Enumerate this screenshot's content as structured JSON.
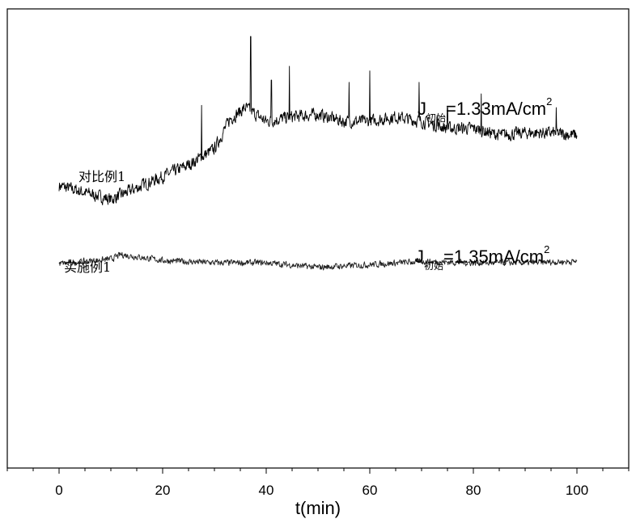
{
  "chart_data": {
    "type": "line",
    "title": "",
    "xlabel": "t(min)",
    "ylabel": "",
    "xlim": [
      -10,
      110
    ],
    "ylim": [
      0,
      1
    ],
    "x_ticks": [
      0,
      20,
      40,
      60,
      80,
      100
    ],
    "x_tick_labels": [
      "0",
      "20",
      "40",
      "60",
      "80",
      "100"
    ],
    "grid": false,
    "legend": "none",
    "series": [
      {
        "name": "对比例1",
        "color": "#000000",
        "baseline_x": [
          0,
          5,
          10,
          15,
          20,
          25,
          30,
          33,
          36,
          40,
          45,
          50,
          55,
          60,
          65,
          70,
          75,
          80,
          85,
          90,
          95,
          100
        ],
        "baseline_y": [
          0.615,
          0.6,
          0.585,
          0.61,
          0.635,
          0.66,
          0.695,
          0.76,
          0.785,
          0.755,
          0.765,
          0.77,
          0.755,
          0.755,
          0.765,
          0.755,
          0.74,
          0.74,
          0.725,
          0.73,
          0.73,
          0.725
        ],
        "spikes_x": [
          27.5,
          37,
          41,
          44.5,
          56,
          60,
          69.5,
          73,
          75,
          81.5,
          96
        ],
        "spikes_y": [
          0.79,
          0.94,
          0.845,
          0.875,
          0.84,
          0.865,
          0.84,
          0.765,
          0.785,
          0.815,
          0.785
        ],
        "noise_amplitude": 0.012
      },
      {
        "name": "实施例1",
        "color": "#222222",
        "baseline_x": [
          0,
          10,
          12,
          20,
          30,
          40,
          50,
          55,
          60,
          70,
          80,
          90,
          100
        ],
        "baseline_y": [
          0.445,
          0.455,
          0.465,
          0.452,
          0.447,
          0.447,
          0.437,
          0.44,
          0.443,
          0.45,
          0.447,
          0.447,
          0.45
        ],
        "noise_amplitude": 0.006
      }
    ],
    "annotations": [
      {
        "main": "J",
        "sub": "初始",
        "rest": "=1.33mA/cm",
        "sup": "2"
      },
      {
        "main": "J",
        "sub": "初始",
        "rest": "=1.35mA/cm",
        "sup": "2"
      }
    ]
  }
}
